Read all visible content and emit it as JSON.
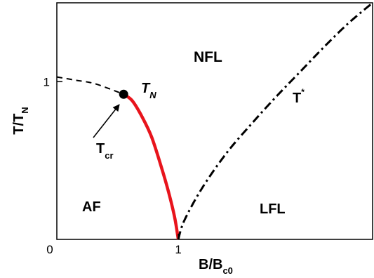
{
  "chart_data": {
    "type": "line",
    "xlim": [
      0,
      2.6
    ],
    "ylim": [
      0,
      1.5
    ],
    "x_ticks": [
      {
        "value": 0,
        "label": "0"
      },
      {
        "value": 1,
        "label": "1"
      }
    ],
    "y_ticks": [
      {
        "value": 1,
        "label": "1"
      }
    ],
    "xlabel": {
      "main": "B/B",
      "sub": "c0"
    },
    "ylabel": {
      "main": "T/T",
      "sub": "N"
    },
    "series": [
      {
        "name": "T_N (dashed)",
        "style": "dashed",
        "color": "#000000",
        "x": [
          0.0,
          0.15,
          0.3,
          0.45,
          0.55
        ],
        "y": [
          1.03,
          1.01,
          0.99,
          0.95,
          0.92
        ]
      },
      {
        "name": "T_N (red)",
        "style": "solid",
        "color": "#e8141c",
        "x": [
          0.55,
          0.62,
          0.7,
          0.78,
          0.86,
          0.92,
          0.97,
          1.0
        ],
        "y": [
          0.92,
          0.88,
          0.78,
          0.65,
          0.46,
          0.3,
          0.14,
          0.0
        ]
      },
      {
        "name": "T*",
        "style": "dashdot",
        "color": "#000000",
        "x": [
          1.0,
          1.05,
          1.2,
          1.4,
          1.6,
          1.8,
          2.0,
          2.2,
          2.4,
          2.6
        ],
        "y": [
          0.0,
          0.12,
          0.33,
          0.55,
          0.73,
          0.9,
          1.06,
          1.22,
          1.37,
          1.5
        ]
      }
    ],
    "points": [
      {
        "name": "T_cr",
        "x": 0.55,
        "y": 0.92,
        "color": "#000000"
      }
    ],
    "annotations": {
      "nfl": "NFL",
      "nfl_color": "#e8141c",
      "af": "AF",
      "lfl": "LFL",
      "tn_main": "T",
      "tn_sub": "N",
      "tstar_main": "T",
      "tstar_sup": "*",
      "tcr_main": "T",
      "tcr_sub": "cr"
    }
  }
}
